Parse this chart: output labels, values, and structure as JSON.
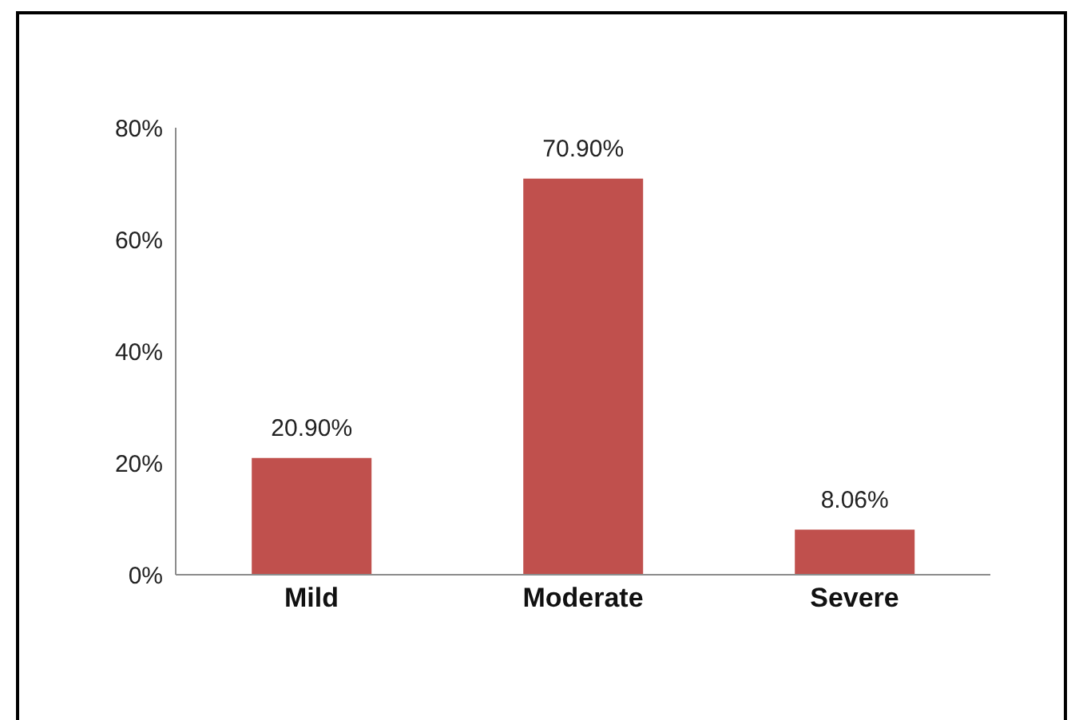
{
  "chart_data": {
    "type": "bar",
    "categories": [
      "Mild",
      "Moderate",
      "Severe"
    ],
    "values": [
      20.9,
      70.9,
      8.06
    ],
    "color": "#c0504d",
    "value_labels": [
      "20.90%",
      "70.90%",
      "8.06%"
    ],
    "ylim": [
      0,
      80
    ],
    "yticks": [
      {
        "value": 0,
        "label": "0%"
      },
      {
        "value": 20,
        "label": "20%"
      },
      {
        "value": 40,
        "label": "40%"
      },
      {
        "value": 60,
        "label": "60%"
      },
      {
        "value": 80,
        "label": "80%"
      }
    ]
  }
}
